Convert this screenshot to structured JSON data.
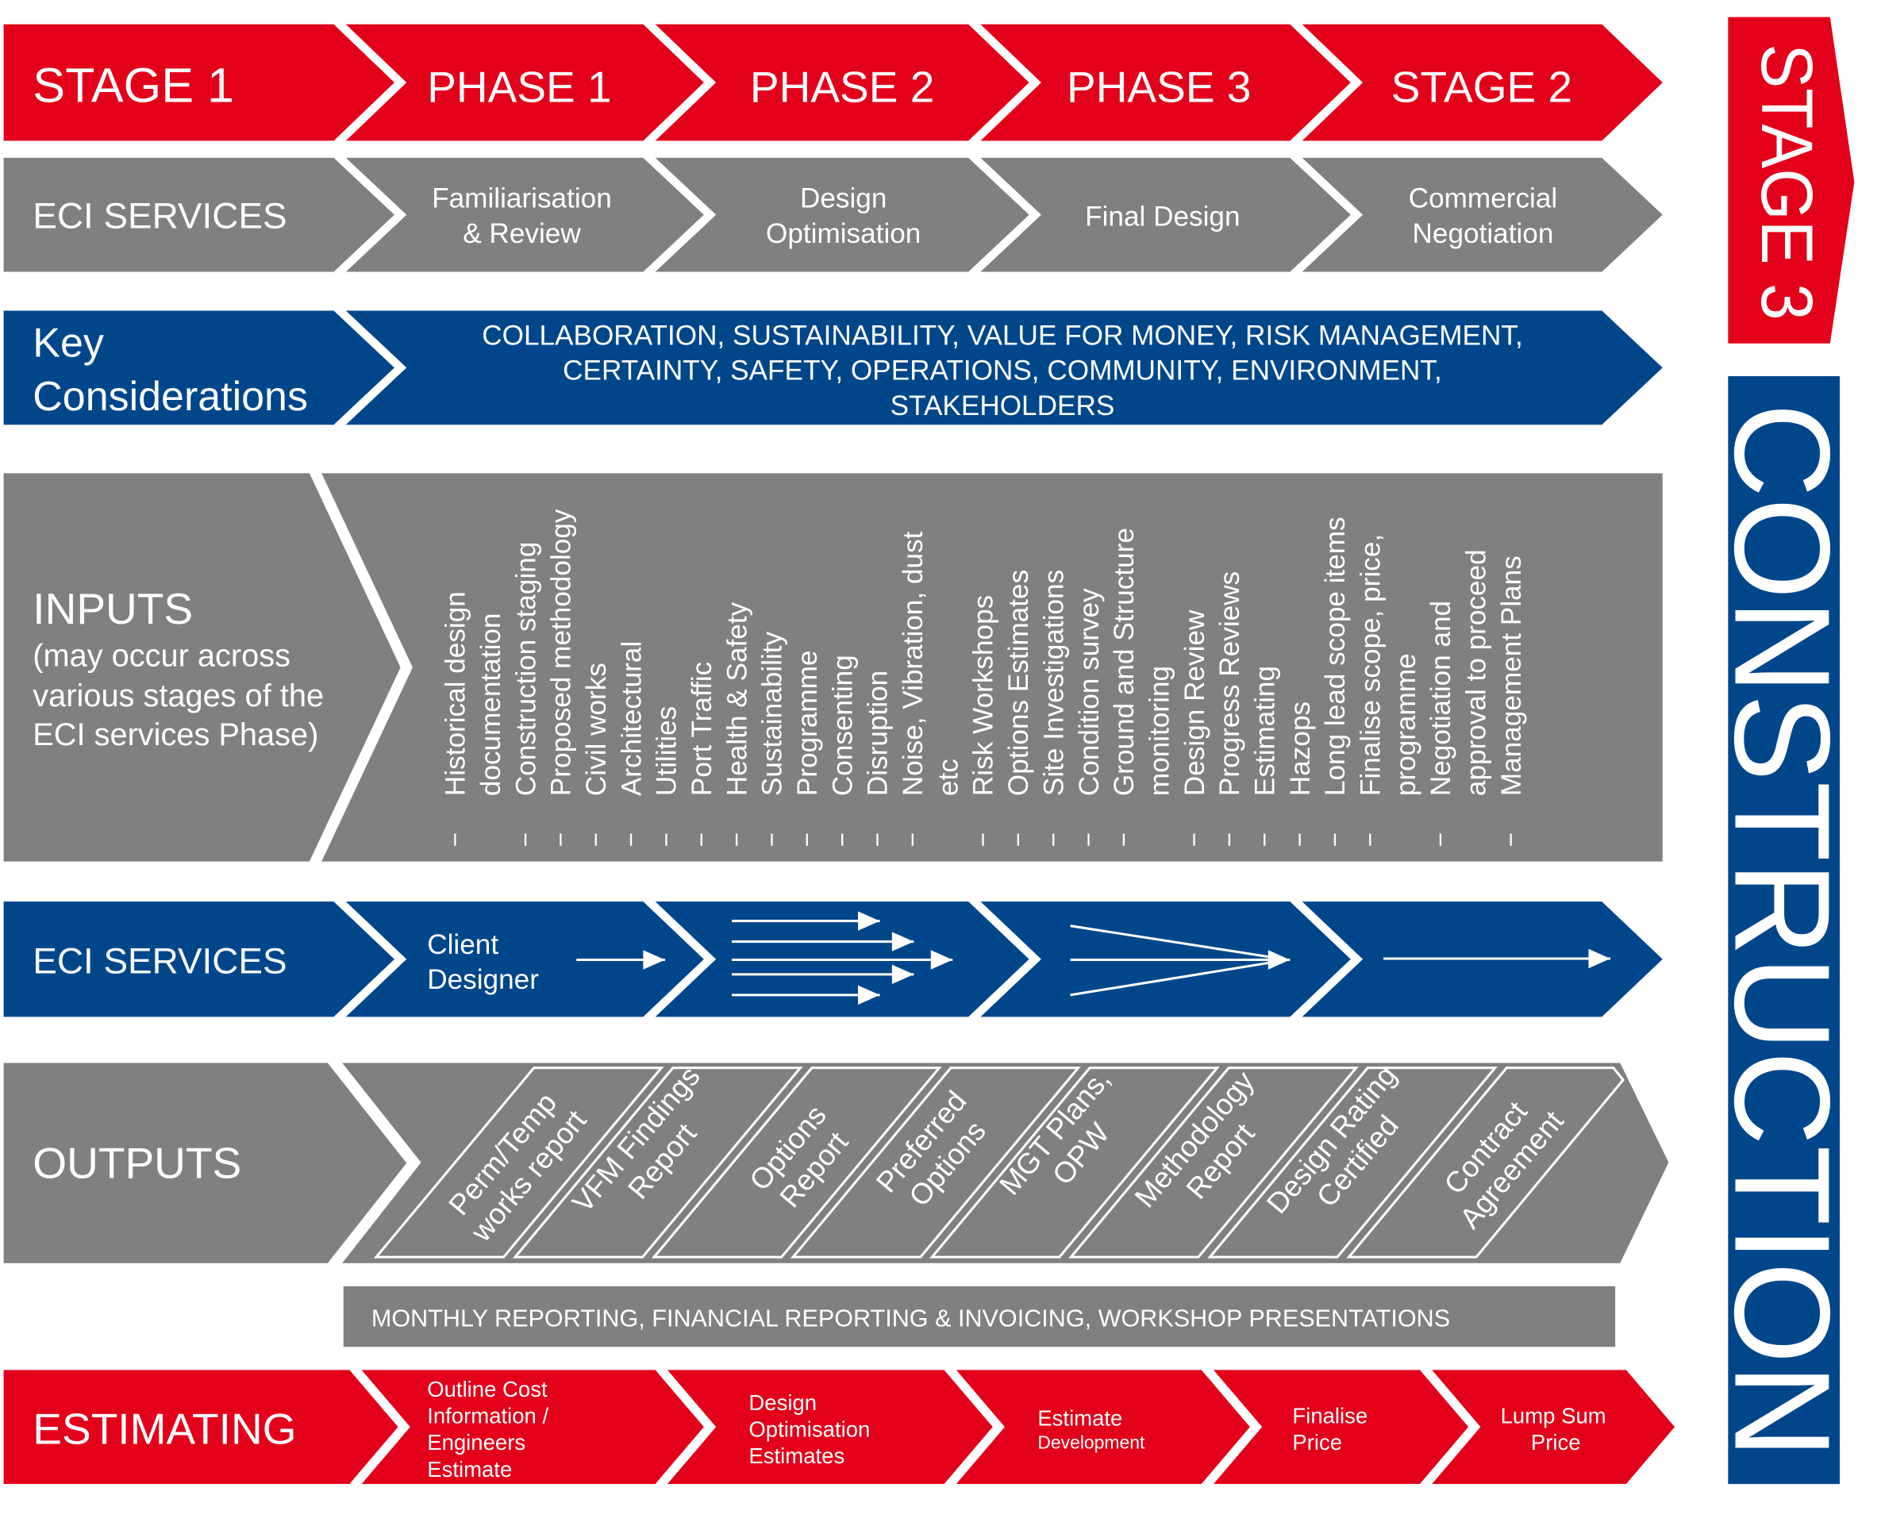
{
  "colors": {
    "red": "#E2001A",
    "gray": "#808080",
    "blue": "#00468B",
    "white": "#FFFFFF"
  },
  "header_row": {
    "labels": [
      "STAGE 1",
      "PHASE 1",
      "PHASE 2",
      "PHASE 3",
      "STAGE 2"
    ]
  },
  "eci_services_row": {
    "title": "ECI SERVICES",
    "phases": [
      {
        "lines": [
          "Familiarisation",
          "& Review"
        ]
      },
      {
        "lines": [
          "Design",
          "Optimisation"
        ]
      },
      {
        "lines": [
          "Final Design"
        ]
      },
      {
        "lines": [
          "Commercial",
          "Negotiation"
        ]
      }
    ]
  },
  "key_considerations": {
    "title_lines": [
      "Key",
      "Considerations"
    ],
    "lines": [
      "COLLABORATION, SUSTAINABILITY, VALUE FOR MONEY, RISK MANAGEMENT,",
      "CERTAINTY, SAFETY, OPERATIONS, COMMUNITY, ENVIRONMENT,",
      "STAKEHOLDERS"
    ]
  },
  "inputs": {
    "title": "INPUTS",
    "subtitle_lines": [
      "(may occur across",
      "various stages of the",
      "ECI services Phase)"
    ],
    "items": [
      {
        "lines": [
          "Historical design",
          "documentation"
        ]
      },
      {
        "lines": [
          "Construction staging"
        ]
      },
      {
        "lines": [
          "Proposed methodology"
        ]
      },
      {
        "lines": [
          "Civil works"
        ]
      },
      {
        "lines": [
          "Architectural"
        ]
      },
      {
        "lines": [
          "Utilities"
        ]
      },
      {
        "lines": [
          "Port Traffic"
        ]
      },
      {
        "lines": [
          "Health & Safety"
        ]
      },
      {
        "lines": [
          "Sustainability"
        ]
      },
      {
        "lines": [
          "Programme"
        ]
      },
      {
        "lines": [
          "Consenting"
        ]
      },
      {
        "lines": [
          "Disruption"
        ]
      },
      {
        "lines": [
          "Noise, Vibration, dust",
          "etc"
        ]
      },
      {
        "lines": [
          "Risk Workshops"
        ]
      },
      {
        "lines": [
          "Options Estimates"
        ]
      },
      {
        "lines": [
          "Site Investigations"
        ]
      },
      {
        "lines": [
          "Condition survey"
        ]
      },
      {
        "lines": [
          "Ground and Structure",
          "monitoring"
        ]
      },
      {
        "lines": [
          "Design Review"
        ]
      },
      {
        "lines": [
          "Progress Reviews"
        ]
      },
      {
        "lines": [
          "Estimating"
        ]
      },
      {
        "lines": [
          "Hazops"
        ]
      },
      {
        "lines": [
          "Long lead scope items"
        ]
      },
      {
        "lines": [
          "Finalise scope, price,",
          "programme"
        ]
      },
      {
        "lines": [
          "Negotiation and",
          "approval to proceed"
        ]
      },
      {
        "lines": [
          "Management Plans"
        ]
      }
    ]
  },
  "eci_services_flow": {
    "title": "ECI SERVICES",
    "phase1_lines": [
      "Client",
      "Designer"
    ]
  },
  "outputs": {
    "title": "OUTPUTS",
    "items": [
      {
        "lines": [
          "Perm/Temp",
          "works report"
        ]
      },
      {
        "lines": [
          "VFM Findings",
          "Report"
        ]
      },
      {
        "lines": [
          "Options",
          "Report"
        ]
      },
      {
        "lines": [
          "Preferred",
          "Options"
        ]
      },
      {
        "lines": [
          "MGT Plans,",
          "OPW"
        ]
      },
      {
        "lines": [
          "Methodology",
          "Report"
        ]
      },
      {
        "lines": [
          "Design Rating",
          "Certified"
        ]
      },
      {
        "lines": [
          "Contract",
          "Agreement"
        ]
      }
    ]
  },
  "reporting": {
    "text": "MONTHLY REPORTING, FINANCIAL REPORTING & INVOICING, WORKSHOP PRESENTATIONS"
  },
  "estimating": {
    "title": "ESTIMATING",
    "steps": [
      {
        "lines": [
          "Outline Cost",
          "Information /",
          "Engineers",
          "Estimate"
        ]
      },
      {
        "lines": [
          "Design",
          "Optimisation",
          "Estimates"
        ]
      },
      {
        "lines": [
          "Estimate",
          "Development"
        ]
      },
      {
        "lines": [
          "Finalise",
          "Price"
        ]
      },
      {
        "lines": [
          "Lump Sum",
          "Price"
        ]
      }
    ]
  },
  "stage3": {
    "label": "STAGE 3"
  },
  "construction": {
    "label": "CONSTRUCTION"
  }
}
